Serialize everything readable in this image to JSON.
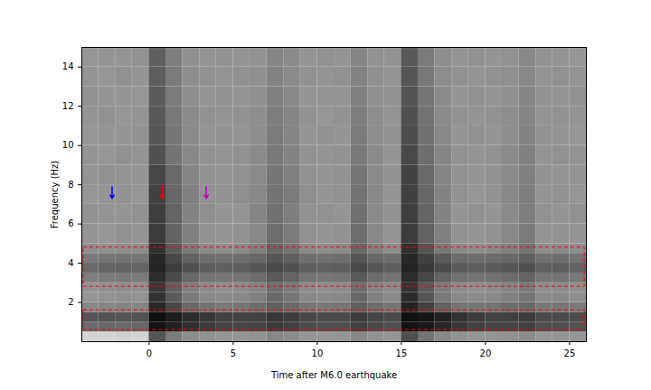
{
  "chart_data": {
    "type": "heatmap",
    "x_label": "Time after M6.0 earthquake",
    "y_label": "Frequency (Hz)",
    "xlim": [
      -4,
      26
    ],
    "ylim": [
      0,
      15
    ],
    "xticks": [
      0,
      5,
      10,
      15,
      20,
      25
    ],
    "yticks": [
      2,
      4,
      6,
      8,
      10,
      12,
      14
    ],
    "x_edges": [
      -4,
      -3,
      -2,
      -1,
      0,
      1,
      2,
      3,
      4,
      5,
      6,
      7,
      8,
      9,
      10,
      11,
      12,
      13,
      14,
      15,
      16,
      17,
      18,
      19,
      20,
      21,
      22,
      23,
      24,
      25,
      26
    ],
    "y_edges": [
      0,
      0.5,
      1,
      1.5,
      2,
      2.5,
      3,
      3.5,
      4,
      4.5,
      5,
      6,
      7,
      8,
      9,
      10,
      11,
      12,
      13,
      14,
      15
    ],
    "z": [
      [
        20,
        20,
        21,
        20,
        70,
        55,
        48,
        46,
        45,
        45,
        46,
        50,
        48,
        45,
        44,
        45,
        50,
        46,
        45,
        72,
        58,
        50,
        46,
        45,
        45,
        46,
        48,
        44,
        45,
        44
      ],
      [
        62,
        63,
        62,
        63,
        96,
        90,
        85,
        80,
        76,
        75,
        76,
        80,
        78,
        73,
        72,
        72,
        78,
        74,
        72,
        96,
        93,
        88,
        82,
        78,
        76,
        76,
        78,
        72,
        72,
        71
      ],
      [
        70,
        71,
        70,
        71,
        98,
        92,
        86,
        82,
        78,
        77,
        78,
        82,
        80,
        75,
        74,
        74,
        80,
        76,
        74,
        97,
        95,
        90,
        84,
        80,
        78,
        78,
        80,
        74,
        74,
        73
      ],
      [
        50,
        51,
        52,
        51,
        88,
        75,
        62,
        58,
        56,
        57,
        60,
        66,
        62,
        57,
        56,
        57,
        66,
        60,
        57,
        90,
        78,
        65,
        58,
        57,
        58,
        60,
        62,
        56,
        57,
        55
      ],
      [
        45,
        46,
        47,
        46,
        84,
        68,
        55,
        50,
        49,
        50,
        53,
        62,
        57,
        50,
        49,
        50,
        62,
        53,
        50,
        86,
        70,
        56,
        50,
        49,
        50,
        53,
        57,
        49,
        50,
        48
      ],
      [
        46,
        47,
        48,
        47,
        82,
        66,
        54,
        49,
        48,
        49,
        52,
        60,
        56,
        49,
        48,
        49,
        60,
        52,
        49,
        84,
        68,
        55,
        49,
        48,
        49,
        52,
        56,
        48,
        49,
        47
      ],
      [
        54,
        55,
        56,
        55,
        86,
        74,
        63,
        58,
        57,
        58,
        61,
        68,
        64,
        58,
        57,
        58,
        68,
        61,
        58,
        86,
        76,
        65,
        59,
        58,
        59,
        61,
        64,
        57,
        58,
        56
      ],
      [
        62,
        64,
        65,
        64,
        90,
        80,
        72,
        67,
        66,
        67,
        70,
        75,
        72,
        67,
        66,
        67,
        75,
        70,
        67,
        90,
        82,
        74,
        68,
        67,
        68,
        70,
        72,
        66,
        67,
        65
      ],
      [
        56,
        57,
        58,
        57,
        88,
        75,
        65,
        60,
        59,
        60,
        63,
        70,
        66,
        60,
        59,
        60,
        70,
        63,
        60,
        88,
        78,
        68,
        61,
        60,
        61,
        63,
        66,
        59,
        60,
        58
      ],
      [
        48,
        47,
        48,
        48,
        85,
        68,
        55,
        49,
        48,
        49,
        53,
        63,
        58,
        49,
        48,
        49,
        63,
        53,
        48,
        85,
        70,
        56,
        49,
        48,
        49,
        53,
        58,
        48,
        49,
        48
      ],
      [
        45,
        44,
        46,
        45,
        80,
        65,
        53,
        46,
        45,
        46,
        50,
        60,
        55,
        46,
        45,
        46,
        60,
        50,
        45,
        80,
        65,
        53,
        46,
        45,
        46,
        50,
        55,
        45,
        46,
        45
      ],
      [
        46,
        45,
        45,
        46,
        79,
        64,
        52,
        47,
        45,
        45,
        51,
        59,
        54,
        46,
        46,
        45,
        59,
        49,
        46,
        79,
        64,
        52,
        45,
        46,
        45,
        49,
        54,
        46,
        45,
        46
      ],
      [
        44,
        45,
        46,
        44,
        78,
        63,
        53,
        46,
        46,
        47,
        50,
        58,
        55,
        47,
        45,
        46,
        58,
        50,
        45,
        78,
        63,
        52,
        46,
        44,
        46,
        50,
        54,
        45,
        46,
        44
      ],
      [
        45,
        46,
        45,
        45,
        76,
        62,
        51,
        46,
        45,
        46,
        49,
        57,
        53,
        46,
        45,
        46,
        57,
        49,
        46,
        77,
        62,
        51,
        46,
        45,
        46,
        49,
        53,
        46,
        45,
        45
      ],
      [
        45,
        44,
        46,
        45,
        72,
        58,
        50,
        46,
        45,
        46,
        49,
        56,
        52,
        46,
        45,
        46,
        56,
        49,
        45,
        75,
        60,
        51,
        46,
        45,
        46,
        49,
        53,
        45,
        46,
        45
      ],
      [
        44,
        45,
        45,
        46,
        70,
        57,
        49,
        45,
        46,
        45,
        48,
        55,
        51,
        45,
        46,
        45,
        55,
        48,
        46,
        73,
        59,
        50,
        45,
        46,
        45,
        48,
        52,
        46,
        45,
        44
      ],
      [
        45,
        46,
        44,
        45,
        69,
        56,
        49,
        46,
        45,
        46,
        48,
        54,
        51,
        46,
        44,
        46,
        54,
        48,
        45,
        72,
        58,
        49,
        46,
        45,
        46,
        48,
        51,
        45,
        46,
        45
      ],
      [
        46,
        45,
        45,
        44,
        68,
        55,
        48,
        45,
        46,
        45,
        47,
        53,
        50,
        45,
        45,
        45,
        53,
        47,
        46,
        71,
        57,
        49,
        45,
        46,
        45,
        47,
        51,
        46,
        45,
        46
      ],
      [
        45,
        44,
        46,
        45,
        67,
        55,
        48,
        46,
        45,
        46,
        47,
        52,
        49,
        46,
        45,
        46,
        52,
        47,
        45,
        70,
        56,
        48,
        46,
        45,
        46,
        47,
        50,
        45,
        46,
        45
      ],
      [
        44,
        45,
        45,
        46,
        66,
        54,
        47,
        45,
        46,
        45,
        46,
        51,
        49,
        45,
        46,
        45,
        51,
        46,
        46,
        69,
        55,
        48,
        45,
        46,
        45,
        46,
        50,
        46,
        45,
        44
      ]
    ],
    "arrows": [
      {
        "x": -2.2,
        "y1": 7.9,
        "y2": 7.3,
        "color": "#0000ff"
      },
      {
        "x": 0.8,
        "y1": 7.9,
        "y2": 7.3,
        "color": "#ff0000"
      },
      {
        "x": 3.4,
        "y1": 7.9,
        "y2": 7.3,
        "color": "#c000c0"
      }
    ],
    "boxes": [
      {
        "x1": -3.9,
        "x2": 25.9,
        "y1": 2.8,
        "y2": 4.8,
        "color": "#ff0000",
        "line_style": "dashed"
      },
      {
        "x1": -3.9,
        "x2": 25.9,
        "y1": 0.6,
        "y2": 1.6,
        "color": "#ff0000",
        "line_style": "dashed"
      }
    ]
  }
}
